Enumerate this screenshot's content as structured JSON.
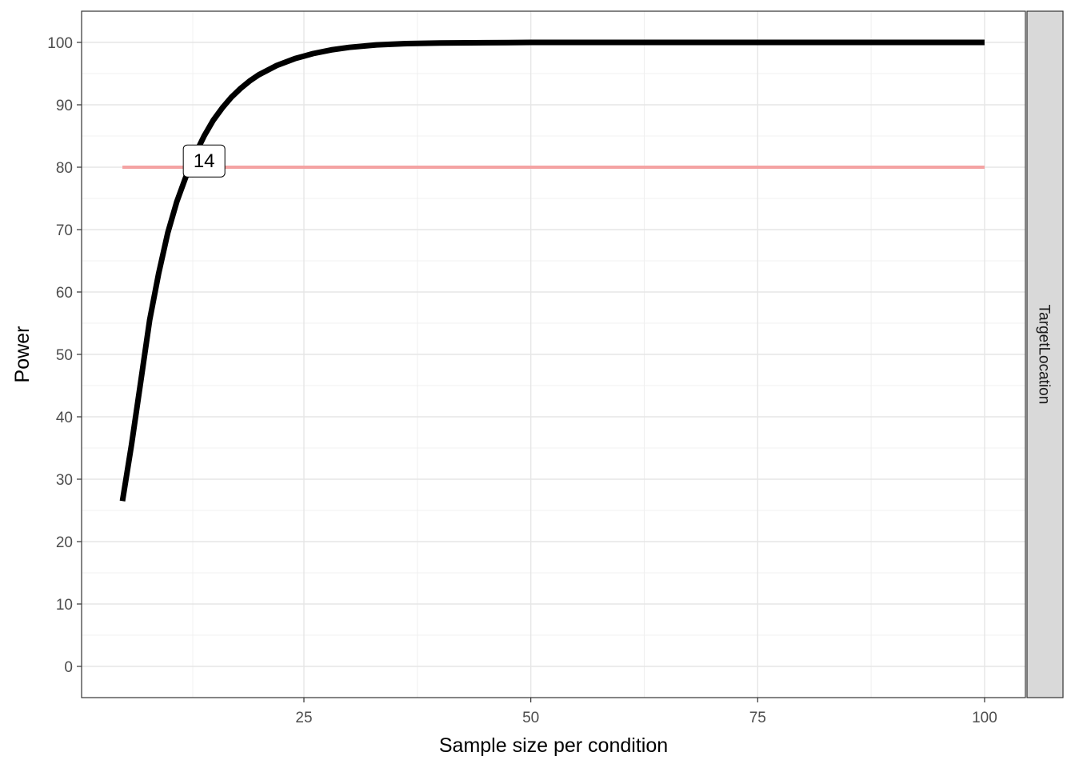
{
  "chart_data": {
    "type": "line",
    "xlabel": "Sample size per condition",
    "ylabel": "Power",
    "facet_label": "TargetLocation",
    "xlim": [
      0.5,
      104.5
    ],
    "ylim": [
      -5,
      105
    ],
    "x_ticks": [
      25,
      50,
      75,
      100
    ],
    "x_tick_labels": [
      "25",
      "50",
      "75",
      "100"
    ],
    "y_ticks": [
      0,
      10,
      20,
      30,
      40,
      50,
      60,
      70,
      80,
      90,
      100
    ],
    "y_tick_labels": [
      "0",
      "10",
      "20",
      "30",
      "40",
      "50",
      "60",
      "70",
      "80",
      "90",
      "100"
    ],
    "grid": true,
    "series": [
      {
        "color": "#000000",
        "x": [
          5,
          6,
          7,
          8,
          9,
          10,
          11,
          12,
          13,
          14,
          15,
          16,
          17,
          18,
          19,
          20,
          22,
          24,
          26,
          28,
          30,
          33,
          36,
          40,
          45,
          50,
          60,
          70,
          80,
          90,
          100
        ],
        "y": [
          26.5,
          35.5,
          45.5,
          55.5,
          63,
          69.5,
          74.5,
          78.5,
          82,
          85,
          87.5,
          89.5,
          91.2,
          92.6,
          93.8,
          94.8,
          96.3,
          97.4,
          98.2,
          98.8,
          99.2,
          99.6,
          99.8,
          99.9,
          99.95,
          100,
          100,
          100,
          100,
          100,
          100
        ]
      }
    ],
    "hline": {
      "y": 80,
      "x_start": 5,
      "x_end": 100,
      "color": "#f4a3a3"
    },
    "annotation": {
      "text": "14",
      "x": 14,
      "y": 81
    }
  }
}
